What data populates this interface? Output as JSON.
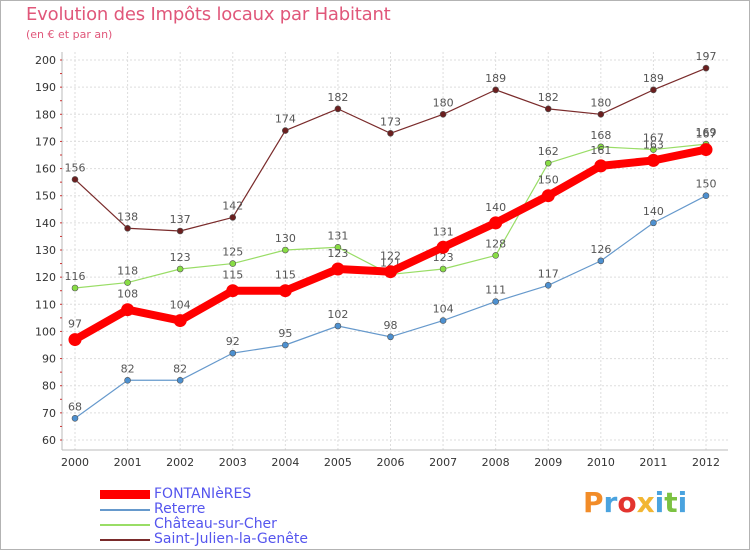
{
  "title": "Evolution des Impôts locaux par Habitant",
  "subtitle": "(en € et par an)",
  "logo": "Proxiti",
  "chart_data": {
    "type": "line",
    "title": "Evolution des Impôts locaux par Habitant",
    "ylabel": "(en € et par an)",
    "xlabel": "",
    "categories": [
      "2000",
      "2001",
      "2002",
      "2003",
      "2004",
      "2005",
      "2006",
      "2007",
      "2008",
      "2009",
      "2010",
      "2011",
      "2012"
    ],
    "ylim": [
      60,
      200
    ],
    "yticks": [
      60,
      70,
      80,
      90,
      100,
      110,
      120,
      130,
      140,
      150,
      160,
      170,
      180,
      190,
      200
    ],
    "grid": true,
    "series": [
      {
        "name": "FONTANIèRES",
        "color": "#ff0000",
        "values": [
          97,
          108,
          104,
          115,
          115,
          123,
          122,
          131,
          140,
          150,
          161,
          163,
          167
        ]
      },
      {
        "name": "Reterre",
        "color": "#6699cc",
        "values": [
          68,
          82,
          82,
          92,
          95,
          102,
          98,
          104,
          111,
          117,
          126,
          140,
          150
        ]
      },
      {
        "name": "Château-sur-Cher",
        "color": "#99dd66",
        "values": [
          116,
          118,
          123,
          125,
          130,
          131,
          121,
          123,
          128,
          162,
          168,
          167,
          169
        ]
      },
      {
        "name": "Saint-Julien-la-Genête",
        "color": "#7a2b2b",
        "values": [
          156,
          138,
          137,
          142,
          174,
          182,
          173,
          180,
          189,
          182,
          180,
          189,
          197
        ]
      }
    ]
  }
}
